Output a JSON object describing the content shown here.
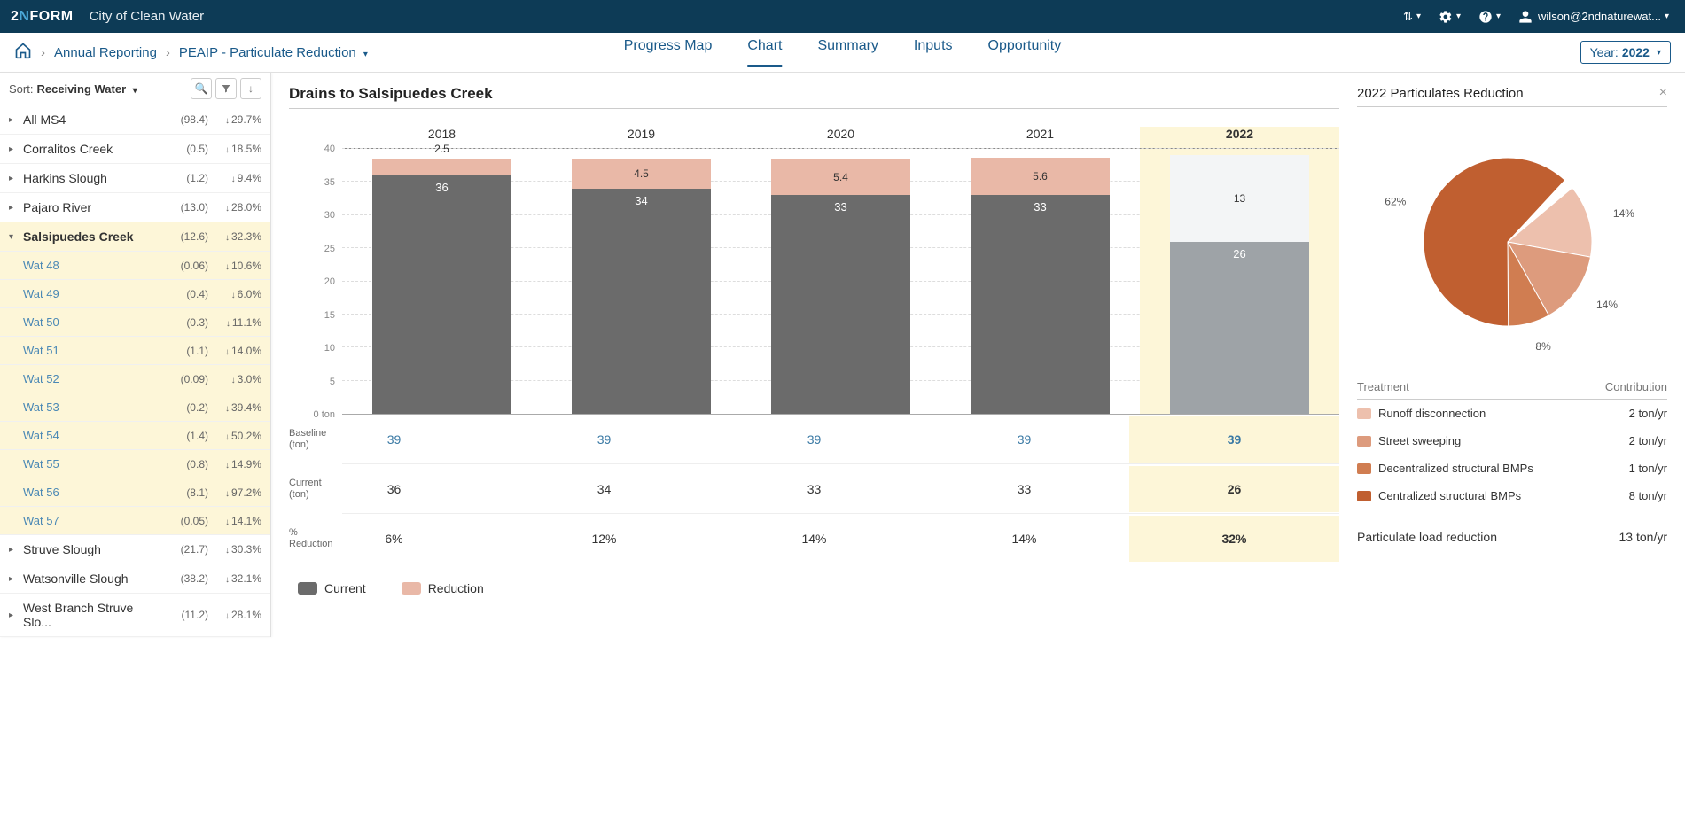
{
  "header": {
    "logo_prefix": "2",
    "logo_mid": "N",
    "logo_suffix": "FORM",
    "city": "City of Clean Water",
    "user": "wilson@2ndnaturewat..."
  },
  "breadcrumb": {
    "level1": "Annual Reporting",
    "level2": "PEAIP - Particulate Reduction"
  },
  "tabs": {
    "t1": "Progress Map",
    "t2": "Chart",
    "t3": "Summary",
    "t4": "Inputs",
    "t5": "Opportunity",
    "active": "Chart"
  },
  "year": {
    "label": "Year:",
    "value": "2022"
  },
  "sort": {
    "label": "Sort:",
    "value": "Receiving Water"
  },
  "sidebar": {
    "items": [
      {
        "name": "All MS4",
        "v1": "(98.4)",
        "v2": "29.7%",
        "expanded": false
      },
      {
        "name": "Corralitos Creek",
        "v1": "(0.5)",
        "v2": "18.5%",
        "expanded": false
      },
      {
        "name": "Harkins Slough",
        "v1": "(1.2)",
        "v2": "9.4%",
        "expanded": false
      },
      {
        "name": "Pajaro River",
        "v1": "(13.0)",
        "v2": "28.0%",
        "expanded": false
      },
      {
        "name": "Salsipuedes Creek",
        "v1": "(12.6)",
        "v2": "32.3%",
        "expanded": true,
        "selected": true,
        "children": [
          {
            "name": "Wat 48",
            "v1": "(0.06)",
            "v2": "10.6%"
          },
          {
            "name": "Wat 49",
            "v1": "(0.4)",
            "v2": "6.0%"
          },
          {
            "name": "Wat 50",
            "v1": "(0.3)",
            "v2": "11.1%"
          },
          {
            "name": "Wat 51",
            "v1": "(1.1)",
            "v2": "14.0%"
          },
          {
            "name": "Wat 52",
            "v1": "(0.09)",
            "v2": "3.0%"
          },
          {
            "name": "Wat 53",
            "v1": "(0.2)",
            "v2": "39.4%"
          },
          {
            "name": "Wat 54",
            "v1": "(1.4)",
            "v2": "50.2%"
          },
          {
            "name": "Wat 55",
            "v1": "(0.8)",
            "v2": "14.9%"
          },
          {
            "name": "Wat 56",
            "v1": "(8.1)",
            "v2": "97.2%"
          },
          {
            "name": "Wat 57",
            "v1": "(0.05)",
            "v2": "14.1%"
          }
        ]
      },
      {
        "name": "Struve Slough",
        "v1": "(21.7)",
        "v2": "30.3%",
        "expanded": false
      },
      {
        "name": "Watsonville Slough",
        "v1": "(38.2)",
        "v2": "32.1%",
        "expanded": false
      },
      {
        "name": "West Branch Struve Slo...",
        "v1": "(11.2)",
        "v2": "28.1%",
        "expanded": false
      }
    ]
  },
  "chart": {
    "title": "Drains to Salsipuedes Creek",
    "years": [
      "2018",
      "2019",
      "2020",
      "2021",
      "2022"
    ],
    "highlight_year": "2022",
    "ymax": 40,
    "ystep": 5,
    "yzerolabel": "0 ton",
    "baseline": 39,
    "series": [
      {
        "year": "2018",
        "current": 36,
        "reduction": 2.5,
        "reduction_label": "2.5",
        "current_label": "36",
        "future_bg": false
      },
      {
        "year": "2019",
        "current": 34,
        "reduction": 4.5,
        "reduction_label": "4.5",
        "current_label": "34",
        "future_bg": false
      },
      {
        "year": "2020",
        "current": 33,
        "reduction": 5.4,
        "reduction_label": "5.4",
        "current_label": "33",
        "future_bg": false
      },
      {
        "year": "2021",
        "current": 33,
        "reduction": 5.6,
        "reduction_label": "5.6",
        "current_label": "33",
        "future_bg": false
      },
      {
        "year": "2022",
        "current": 26,
        "reduction": 13,
        "reduction_label": "13",
        "current_label": "26",
        "future_bg": true
      }
    ],
    "colors": {
      "current": "#6b6b6b",
      "reduction": "#e9b8a7",
      "future_current": "#9ea3a7",
      "future_reduction": "#f3f5f6"
    },
    "rows": {
      "baseline_label": "Baseline (ton)",
      "baseline": [
        "39",
        "39",
        "39",
        "39",
        "39"
      ],
      "current_label": "Current (ton)",
      "current": [
        "36",
        "34",
        "33",
        "33",
        "26"
      ],
      "pct_label": "% Reduction",
      "pct": [
        "6%",
        "12%",
        "14%",
        "14%",
        "32%"
      ]
    },
    "legend": {
      "l1": "Current",
      "l2": "Reduction"
    }
  },
  "pie": {
    "title": "2022 Particulates Reduction",
    "slices": [
      {
        "label": "Runoff disconnection",
        "pct": 14,
        "pct_label": "14%",
        "value": "2 ton/yr",
        "color": "#edc0ad"
      },
      {
        "label": "Street sweeping",
        "pct": 14,
        "pct_label": "14%",
        "value": "2 ton/yr",
        "color": "#dd9b7d"
      },
      {
        "label": "Decentralized structural BMPs",
        "pct": 8,
        "pct_label": "8%",
        "value": "1 ton/yr",
        "color": "#d07d51"
      },
      {
        "label": "Centralized structural BMPs",
        "pct": 62,
        "pct_label": "62%",
        "value": "8 ton/yr",
        "color": "#c05f30"
      }
    ],
    "table_h1": "Treatment",
    "table_h2": "Contribution",
    "total_label": "Particulate load reduction",
    "total_value": "13 ton/yr"
  }
}
